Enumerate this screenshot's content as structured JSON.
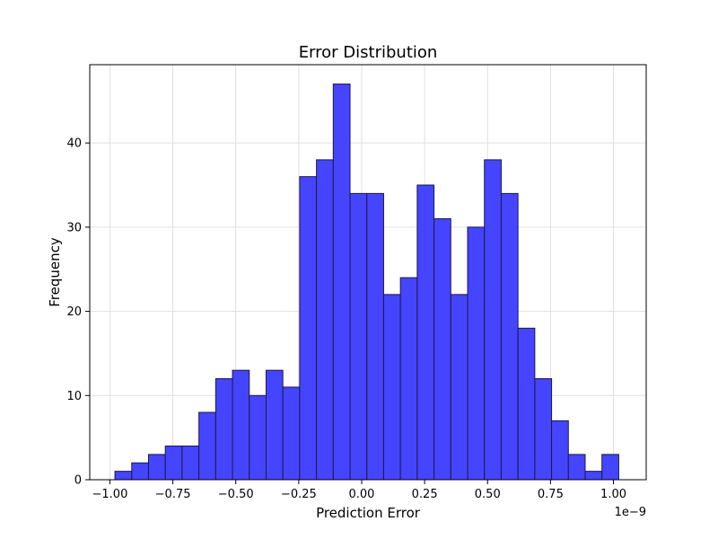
{
  "chart_data": {
    "type": "bar",
    "title": "Error Distribution",
    "xlabel": "Prediction Error",
    "ylabel": "Frequency",
    "x_offset_label": "1e−9",
    "bin_start": -0.98,
    "bin_width": 0.0667,
    "values": [
      1,
      2,
      3,
      4,
      4,
      8,
      12,
      13,
      10,
      13,
      11,
      36,
      38,
      47,
      34,
      34,
      22,
      24,
      35,
      31,
      22,
      30,
      38,
      34,
      18,
      12,
      7,
      3,
      1,
      3
    ],
    "xlim": [
      -1.08,
      1.13
    ],
    "ylim": [
      0,
      49.3
    ],
    "xticks": [
      -1.0,
      -0.75,
      -0.5,
      -0.25,
      0.0,
      0.25,
      0.5,
      0.75,
      1.0
    ],
    "xtick_labels": [
      "−1.00",
      "−0.75",
      "−0.50",
      "−0.25",
      "0.00",
      "0.25",
      "0.50",
      "0.75",
      "1.00"
    ],
    "yticks": [
      0,
      10,
      20,
      30,
      40
    ],
    "ytick_labels": [
      "0",
      "10",
      "20",
      "30",
      "40"
    ],
    "grid": true,
    "bar_color": "#4545ff",
    "edge_color": "#1a1a4a",
    "grid_color": "#e0e0e0"
  }
}
